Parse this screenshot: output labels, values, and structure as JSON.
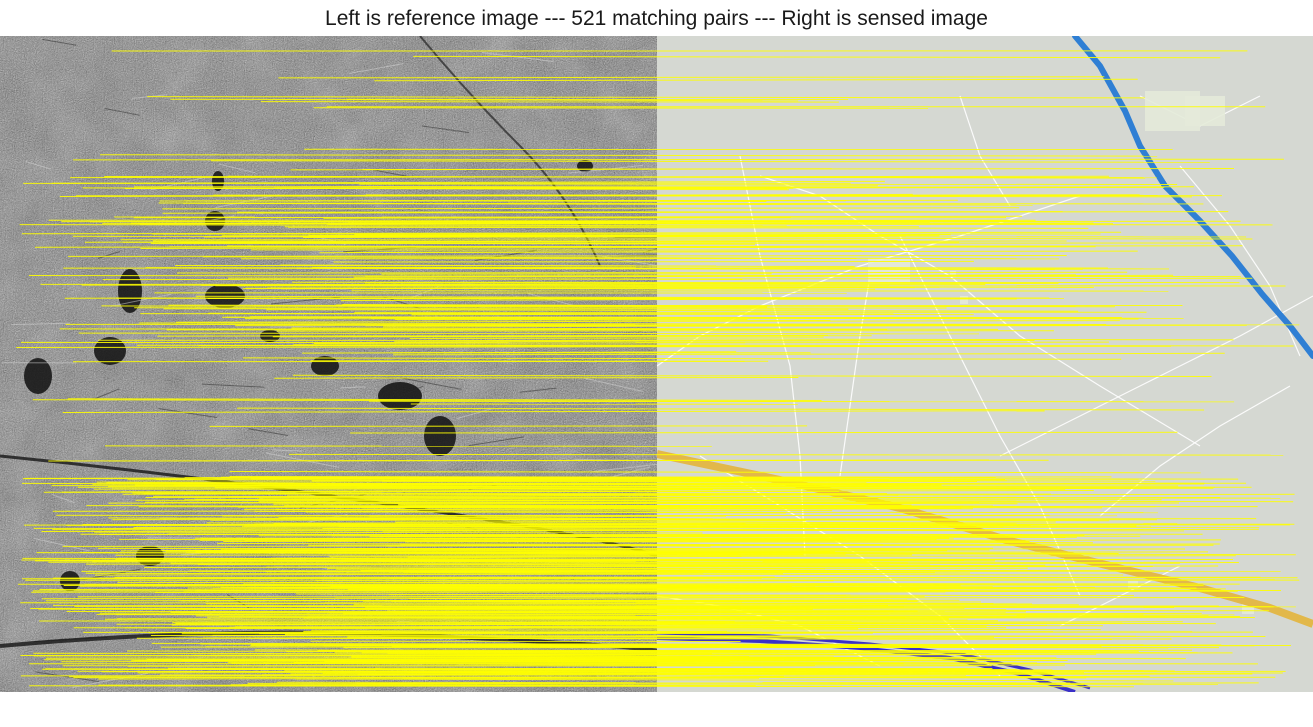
{
  "figure": {
    "title": "Left is reference image --- 521 matching pairs --- Right is sensed image",
    "colors": {
      "sar_background": "#7a7a7a",
      "map_background": "#d5d8d2",
      "match_line": "#ffff00",
      "map_road": "#ffffff",
      "river": "#2f7fd4",
      "highway": "#e2b84a",
      "railway": "#3a30c8"
    }
  }
}
